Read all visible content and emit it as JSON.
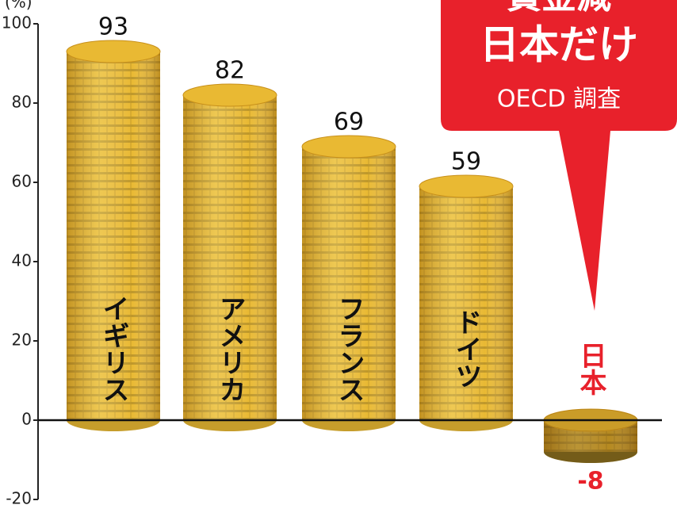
{
  "chart_data": {
    "type": "bar",
    "y_label": "(%)",
    "categories": [
      "イギリス",
      "アメリカ",
      "フランス",
      "ドイツ",
      "日本"
    ],
    "values": [
      93,
      82,
      69,
      59,
      -8
    ],
    "color": "#e9b933",
    "highlight_color": "#e8212b",
    "ylim": [
      -20,
      100
    ],
    "yticks": [
      -20,
      0,
      20,
      40,
      60,
      80,
      100
    ],
    "callout": {
      "lines": [
        "賃金減",
        "日本だけ",
        "OECD 調査"
      ]
    }
  }
}
